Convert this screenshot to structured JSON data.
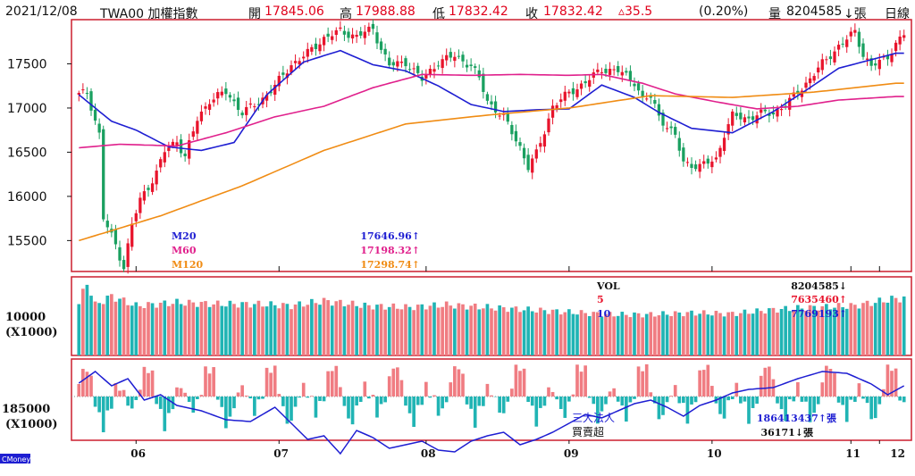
{
  "header": {
    "date": "2021/12/08",
    "symbol": "TWA00 加權指數",
    "open_label": "開",
    "open": "17845.06",
    "high_label": "高",
    "high": "17988.88",
    "low_label": "低",
    "low": "17832.42",
    "close_label": "收",
    "close": "17832.42",
    "change": "▵35.5",
    "change_pct": "(0.20%)",
    "volume_label": "量",
    "volume": "8204585",
    "volume_unit": "↓張",
    "period": "日線"
  },
  "colors": {
    "frame": "#cc1f2f",
    "up": "#e8142c",
    "down": "#1aa060",
    "ma20": "#1e1ed2",
    "ma60": "#e0208c",
    "ma120": "#f08c14",
    "vol_up": "#f07c82",
    "vol_down": "#20b4b4",
    "vol_ma5": "#e8142c",
    "vol_ma10": "#1e1ed2"
  },
  "legend_price": [
    {
      "label": "M20",
      "value": "17646.96↑",
      "color": "#1e1ed2"
    },
    {
      "label": "M60",
      "value": "17198.32↑",
      "color": "#e0208c"
    },
    {
      "label": "M120",
      "value": "17298.74↑",
      "color": "#f08c14"
    }
  ],
  "legend_volume": [
    {
      "label": "VOL",
      "value": "8204585↓",
      "color": "#111111"
    },
    {
      "label": "5",
      "value": "7635460↑",
      "color": "#e8142c"
    },
    {
      "label": "10",
      "value": "7769193↑",
      "color": "#1e1ed2"
    }
  ],
  "legend_inst": [
    {
      "label": "三大法人",
      "value": "186413437↑張"
    },
    {
      "label": "買賣超",
      "value": "36171↓張"
    }
  ],
  "volume_axis": {
    "tick": "10000",
    "unit": "(X1000)"
  },
  "inst_axis": {
    "tick": "185000",
    "unit": "(X1000)"
  },
  "watermark": "CMoney",
  "chart_data": {
    "type": "candlestick",
    "title": "TWA00 加權指數 日線",
    "x_ticks": [
      "06",
      "07",
      "08",
      "09",
      "10",
      "11",
      "12"
    ],
    "price_y_ticks": [
      15500,
      16000,
      16500,
      17000,
      17500
    ],
    "price_ylim": [
      15150,
      18000
    ],
    "price_series": [
      {
        "name": "M20",
        "anchors": [
          [
            0,
            17150
          ],
          [
            8,
            16850
          ],
          [
            14,
            16750
          ],
          [
            22,
            16560
          ],
          [
            30,
            16520
          ],
          [
            38,
            16610
          ],
          [
            46,
            17150
          ],
          [
            55,
            17520
          ],
          [
            64,
            17650
          ],
          [
            72,
            17490
          ],
          [
            80,
            17420
          ],
          [
            88,
            17250
          ],
          [
            96,
            17040
          ],
          [
            104,
            16960
          ],
          [
            112,
            16980
          ],
          [
            120,
            16990
          ],
          [
            128,
            17260
          ],
          [
            136,
            17120
          ],
          [
            142,
            16950
          ],
          [
            150,
            16770
          ],
          [
            160,
            16720
          ],
          [
            170,
            16960
          ],
          [
            178,
            17200
          ],
          [
            186,
            17450
          ],
          [
            200,
            17620
          ]
        ]
      },
      {
        "name": "M60",
        "anchors": [
          [
            0,
            16550
          ],
          [
            10,
            16590
          ],
          [
            24,
            16570
          ],
          [
            36,
            16720
          ],
          [
            48,
            16900
          ],
          [
            60,
            17020
          ],
          [
            72,
            17230
          ],
          [
            84,
            17380
          ],
          [
            96,
            17370
          ],
          [
            108,
            17380
          ],
          [
            120,
            17370
          ],
          [
            128,
            17380
          ],
          [
            138,
            17280
          ],
          [
            146,
            17160
          ],
          [
            156,
            17070
          ],
          [
            166,
            16990
          ],
          [
            176,
            17020
          ],
          [
            186,
            17090
          ],
          [
            200,
            17130
          ]
        ]
      },
      {
        "name": "M120",
        "anchors": [
          [
            0,
            15500
          ],
          [
            20,
            15780
          ],
          [
            40,
            16120
          ],
          [
            60,
            16520
          ],
          [
            80,
            16820
          ],
          [
            100,
            16920
          ],
          [
            120,
            17000
          ],
          [
            140,
            17140
          ],
          [
            160,
            17120
          ],
          [
            180,
            17180
          ],
          [
            200,
            17280
          ]
        ]
      }
    ],
    "candle_anchors": [
      [
        0,
        17150
      ],
      [
        2,
        17180
      ],
      [
        5,
        16700
      ],
      [
        6,
        15750
      ],
      [
        9,
        15450
      ],
      [
        11,
        15200
      ],
      [
        13,
        15680
      ],
      [
        15,
        15960
      ],
      [
        17,
        16110
      ],
      [
        19,
        16270
      ],
      [
        21,
        16510
      ],
      [
        24,
        16630
      ],
      [
        26,
        16450
      ],
      [
        29,
        16870
      ],
      [
        32,
        17090
      ],
      [
        36,
        17180
      ],
      [
        40,
        16950
      ],
      [
        44,
        17060
      ],
      [
        48,
        17250
      ],
      [
        52,
        17490
      ],
      [
        56,
        17620
      ],
      [
        60,
        17790
      ],
      [
        64,
        17870
      ],
      [
        68,
        17810
      ],
      [
        72,
        17900
      ],
      [
        74,
        17670
      ],
      [
        76,
        17480
      ],
      [
        80,
        17520
      ],
      [
        84,
        17320
      ],
      [
        88,
        17520
      ],
      [
        92,
        17590
      ],
      [
        96,
        17480
      ],
      [
        98,
        17330
      ],
      [
        100,
        17080
      ],
      [
        104,
        16890
      ],
      [
        108,
        16560
      ],
      [
        110,
        16330
      ],
      [
        112,
        16480
      ],
      [
        114,
        16740
      ],
      [
        116,
        17020
      ],
      [
        120,
        17170
      ],
      [
        124,
        17290
      ],
      [
        128,
        17440
      ],
      [
        132,
        17420
      ],
      [
        136,
        17300
      ],
      [
        138,
        17100
      ],
      [
        140,
        17120
      ],
      [
        142,
        16910
      ],
      [
        146,
        16680
      ],
      [
        148,
        16380
      ],
      [
        152,
        16340
      ],
      [
        156,
        16420
      ],
      [
        158,
        16710
      ],
      [
        160,
        16910
      ],
      [
        164,
        16880
      ],
      [
        166,
        16930
      ],
      [
        170,
        16940
      ],
      [
        174,
        17080
      ],
      [
        178,
        17280
      ],
      [
        182,
        17500
      ],
      [
        186,
        17700
      ],
      [
        190,
        17860
      ],
      [
        192,
        17610
      ],
      [
        194,
        17470
      ],
      [
        196,
        17520
      ],
      [
        198,
        17580
      ],
      [
        200,
        17730
      ],
      [
        202,
        17832
      ]
    ],
    "volume_ylim": [
      0,
      9800000
    ],
    "volume_anchors": [
      [
        0,
        6400000
      ],
      [
        2,
        9200000
      ],
      [
        4,
        6300000
      ],
      [
        8,
        7400000
      ],
      [
        14,
        6200000
      ],
      [
        24,
        6600000
      ],
      [
        34,
        6400000
      ],
      [
        44,
        6400000
      ],
      [
        52,
        6200000
      ],
      [
        60,
        6800000
      ],
      [
        70,
        6200000
      ],
      [
        80,
        6000000
      ],
      [
        90,
        6300000
      ],
      [
        100,
        6000000
      ],
      [
        110,
        5700000
      ],
      [
        120,
        5400000
      ],
      [
        130,
        5100000
      ],
      [
        140,
        5100000
      ],
      [
        150,
        5300000
      ],
      [
        160,
        5200000
      ],
      [
        170,
        5700000
      ],
      [
        180,
        6000000
      ],
      [
        190,
        6200000
      ],
      [
        200,
        7100000
      ]
    ],
    "inst_series_anchors": [
      [
        0,
        15
      ],
      [
        4,
        28
      ],
      [
        8,
        12
      ],
      [
        12,
        20
      ],
      [
        16,
        -4
      ],
      [
        20,
        2
      ],
      [
        24,
        -10
      ],
      [
        30,
        -16
      ],
      [
        36,
        -26
      ],
      [
        42,
        -28
      ],
      [
        48,
        -12
      ],
      [
        52,
        -30
      ],
      [
        56,
        -48
      ],
      [
        60,
        -44
      ],
      [
        64,
        -64
      ],
      [
        68,
        -38
      ],
      [
        72,
        -46
      ],
      [
        76,
        -58
      ],
      [
        80,
        -54
      ],
      [
        84,
        -50
      ],
      [
        88,
        -60
      ],
      [
        92,
        -62
      ],
      [
        96,
        -50
      ],
      [
        100,
        -44
      ],
      [
        104,
        -40
      ],
      [
        108,
        -54
      ],
      [
        112,
        -48
      ],
      [
        116,
        -40
      ],
      [
        120,
        -30
      ],
      [
        124,
        -20
      ],
      [
        128,
        -24
      ],
      [
        132,
        -16
      ],
      [
        136,
        -8
      ],
      [
        140,
        -4
      ],
      [
        144,
        -12
      ],
      [
        148,
        -22
      ],
      [
        152,
        -10
      ],
      [
        156,
        -4
      ],
      [
        160,
        4
      ],
      [
        164,
        8
      ],
      [
        170,
        10
      ],
      [
        176,
        20
      ],
      [
        182,
        28
      ],
      [
        188,
        26
      ],
      [
        194,
        14
      ],
      [
        198,
        2
      ],
      [
        202,
        12
      ]
    ]
  }
}
